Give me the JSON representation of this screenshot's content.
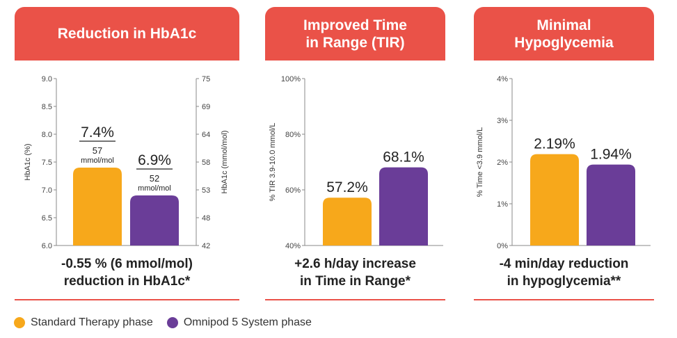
{
  "colors": {
    "standard": "#f7a81b",
    "omnipod": "#6a3d98",
    "accent": "#ea5248"
  },
  "legend": {
    "standard": "Standard Therapy phase",
    "omnipod": "Omnipod 5 System phase"
  },
  "chart_data": [
    {
      "type": "bar",
      "title": "Reduction in HbA1c",
      "ylabel": "HbA1c (%)",
      "y2label": "HbA1c (mmol/mol)",
      "ylim": [
        6.0,
        9.0
      ],
      "yticks": [
        "9.0",
        "8.5",
        "8.0",
        "7.5",
        "7.0",
        "6.5",
        "6.0"
      ],
      "y2ticks": [
        "75",
        "69",
        "64",
        "58",
        "53",
        "48",
        "42"
      ],
      "categories": [
        "Standard Therapy phase",
        "Omnipod 5 System phase"
      ],
      "values": [
        7.4,
        6.9
      ],
      "labels": [
        "7.4%",
        "6.9%"
      ],
      "sublabels": [
        {
          "value": "57",
          "unit": "mmol/mol"
        },
        {
          "value": "52",
          "unit": "mmol/mol"
        }
      ],
      "caption": "-0.55 % (6 mmol/mol)\nreduction in HbA1c*"
    },
    {
      "type": "bar",
      "title": "Improved Time\nin Range (TIR)",
      "ylabel": "% TIR  3.9-10.0 mmol/L",
      "ylim": [
        40,
        100
      ],
      "yticks": [
        "100%",
        "80%",
        "60%",
        "40%"
      ],
      "categories": [
        "Standard Therapy phase",
        "Omnipod 5 System phase"
      ],
      "values": [
        57.2,
        68.1
      ],
      "labels": [
        "57.2%",
        "68.1%"
      ],
      "caption": "+2.6 h/day increase\nin Time in Range*"
    },
    {
      "type": "bar",
      "title": "Minimal\nHypoglycemia",
      "ylabel": "% Time <3.9 mmol/L",
      "ylim": [
        0,
        4
      ],
      "yticks": [
        "4%",
        "3%",
        "2%",
        "1%",
        "0%"
      ],
      "categories": [
        "Standard Therapy phase",
        "Omnipod 5 System phase"
      ],
      "values": [
        2.19,
        1.94
      ],
      "labels": [
        "2.19%",
        "1.94%"
      ],
      "caption": "-4 min/day reduction\nin hypoglycemia**"
    }
  ]
}
